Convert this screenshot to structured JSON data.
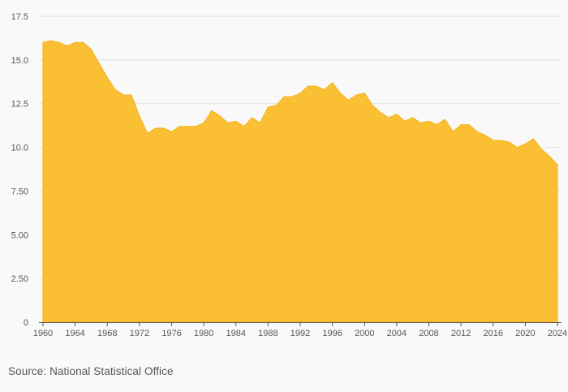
{
  "source_text": "Source: National Statistical Office",
  "colors": {
    "area_fill": "#fbbf33",
    "area_stroke": "#f5b21f",
    "grid": "#e2e2e2",
    "axis": "#555555",
    "background": "#f9f9f9"
  },
  "chart_data": {
    "type": "area",
    "title": "",
    "xlabel": "",
    "ylabel": "",
    "grid": "horizontal",
    "legend": "none",
    "xlim": [
      1959.5,
      2024.5
    ],
    "ylim": [
      0,
      17.5
    ],
    "y_ticks": [
      {
        "value": 0,
        "label": "0"
      },
      {
        "value": 2.5,
        "label": "2.50"
      },
      {
        "value": 5,
        "label": "5.00"
      },
      {
        "value": 7.5,
        "label": "7.50"
      },
      {
        "value": 10,
        "label": "10.0"
      },
      {
        "value": 12.5,
        "label": "12.5"
      },
      {
        "value": 15,
        "label": "15.0"
      },
      {
        "value": 17.5,
        "label": "17.5"
      }
    ],
    "x_ticks": [
      {
        "value": 1960,
        "label": "1960"
      },
      {
        "value": 1964,
        "label": "1964"
      },
      {
        "value": 1968,
        "label": "1968"
      },
      {
        "value": 1972,
        "label": "1972"
      },
      {
        "value": 1976,
        "label": "1976"
      },
      {
        "value": 1980,
        "label": "1980"
      },
      {
        "value": 1984,
        "label": "1984"
      },
      {
        "value": 1988,
        "label": "1988"
      },
      {
        "value": 1992,
        "label": "1992"
      },
      {
        "value": 1996,
        "label": "1996"
      },
      {
        "value": 2000,
        "label": "2000"
      },
      {
        "value": 2004,
        "label": "2004"
      },
      {
        "value": 2008,
        "label": "2008"
      },
      {
        "value": 2012,
        "label": "2012"
      },
      {
        "value": 2016,
        "label": "2016"
      },
      {
        "value": 2020,
        "label": "2020"
      },
      {
        "value": 2024,
        "label": "2024"
      }
    ],
    "x": [
      1960,
      1961,
      1962,
      1963,
      1964,
      1965,
      1966,
      1967,
      1968,
      1969,
      1970,
      1971,
      1972,
      1973,
      1974,
      1975,
      1976,
      1977,
      1978,
      1979,
      1980,
      1981,
      1982,
      1983,
      1984,
      1985,
      1986,
      1987,
      1988,
      1989,
      1990,
      1991,
      1992,
      1993,
      1994,
      1995,
      1996,
      1997,
      1998,
      1999,
      2000,
      2001,
      2002,
      2003,
      2004,
      2005,
      2006,
      2007,
      2008,
      2009,
      2010,
      2011,
      2012,
      2013,
      2014,
      2015,
      2016,
      2017,
      2018,
      2019,
      2020,
      2021,
      2022,
      2023,
      2024
    ],
    "series": [
      {
        "values": [
          16.0,
          16.1,
          16.0,
          15.8,
          16.0,
          16.0,
          15.6,
          14.8,
          14.0,
          13.3,
          13.0,
          13.0,
          11.8,
          10.8,
          11.1,
          11.1,
          10.9,
          11.2,
          11.2,
          11.2,
          11.4,
          12.1,
          11.8,
          11.4,
          11.5,
          11.2,
          11.7,
          11.4,
          12.3,
          12.4,
          12.9,
          12.9,
          13.1,
          13.5,
          13.5,
          13.3,
          13.7,
          13.1,
          12.7,
          13.0,
          13.1,
          12.4,
          12.0,
          11.7,
          11.9,
          11.5,
          11.7,
          11.4,
          11.5,
          11.3,
          11.6,
          10.9,
          11.3,
          11.3,
          10.9,
          10.7,
          10.4,
          10.4,
          10.3,
          10.0,
          10.2,
          10.5,
          9.9,
          9.5,
          9.0
        ]
      }
    ]
  }
}
